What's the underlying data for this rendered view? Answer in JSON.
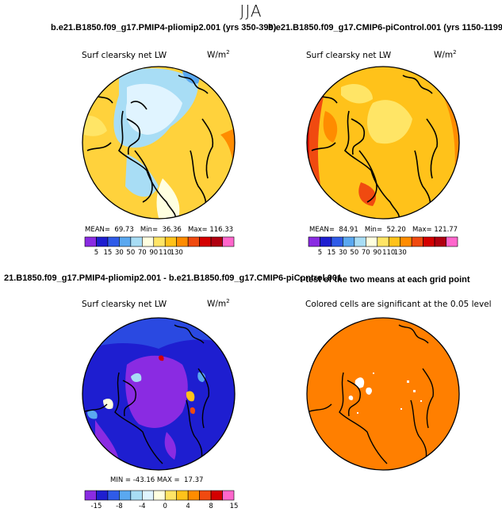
{
  "main_title": "JJA",
  "colors": {
    "abs_scale": [
      "#8A2BE2",
      "#1E1ED0",
      "#2F5BE8",
      "#5AA8F0",
      "#A8DDF5",
      "#FFFFE0",
      "#FFE566",
      "#FFC21A",
      "#FF8C00",
      "#F04A10",
      "#D40000",
      "#B00010",
      "#FF66CC"
    ],
    "diff_scale": [
      "#8A2BE2",
      "#1E1ED0",
      "#2F5BE8",
      "#5AA8F0",
      "#A8DDF5",
      "#E0F4FF",
      "#FFFFE0",
      "#FFE566",
      "#FFC21A",
      "#FF8C00",
      "#F04A10",
      "#D40000",
      "#FF66CC"
    ],
    "significance_fill": "#FF7F00"
  },
  "chart_data": [
    {
      "type": "heatmap",
      "projection": "north polar stereographic",
      "title": "b.e21.B1850.f09_g17.PMIP4-pliomip2.001 (yrs 350-399)",
      "variable": "Surf clearsky net LW",
      "units": "W/m",
      "units_sup": "2",
      "stats": {
        "mean_label": "MEAN=",
        "mean": "69.73",
        "min_label": "Min=",
        "min": "36.36",
        "max_label": "Max=",
        "max": "116.33"
      },
      "colorbar_ticks": [
        "5",
        "15",
        "30",
        "50",
        "70",
        "90",
        "110",
        "130"
      ]
    },
    {
      "type": "heatmap",
      "projection": "north polar stereographic",
      "title": "b.e21.B1850.f09_g17.CMIP6-piControl.001 (yrs 1150-1199)",
      "variable": "Surf clearsky net LW",
      "units": "W/m",
      "units_sup": "2",
      "stats": {
        "mean_label": "MEAN=",
        "mean": "84.91",
        "min_label": "Min=",
        "min": "52.20",
        "max_label": "Max=",
        "max": "121.77"
      },
      "colorbar_ticks": [
        "5",
        "15",
        "30",
        "50",
        "70",
        "90",
        "110",
        "130"
      ]
    },
    {
      "type": "heatmap",
      "projection": "north polar stereographic",
      "title": "21.B1850.f09_g17.PMIP4-pliomip2.001 - b.e21.B1850.f09_g17.CMIP6-piControl.001",
      "variable": "Surf clearsky net LW",
      "units": "W/m",
      "units_sup": "2",
      "stats": {
        "min_label": "MIN =",
        "min": "-43.16",
        "max_label": "MAX =",
        "max": "17.37"
      },
      "colorbar_ticks": [
        "-15",
        "-8",
        "-4",
        "0",
        "4",
        "8",
        "15"
      ]
    },
    {
      "type": "heatmap",
      "projection": "north polar stereographic",
      "title": "t-test of the two means at each grid point",
      "subtitle": "Colored cells are significant at the 0.05 level"
    }
  ]
}
